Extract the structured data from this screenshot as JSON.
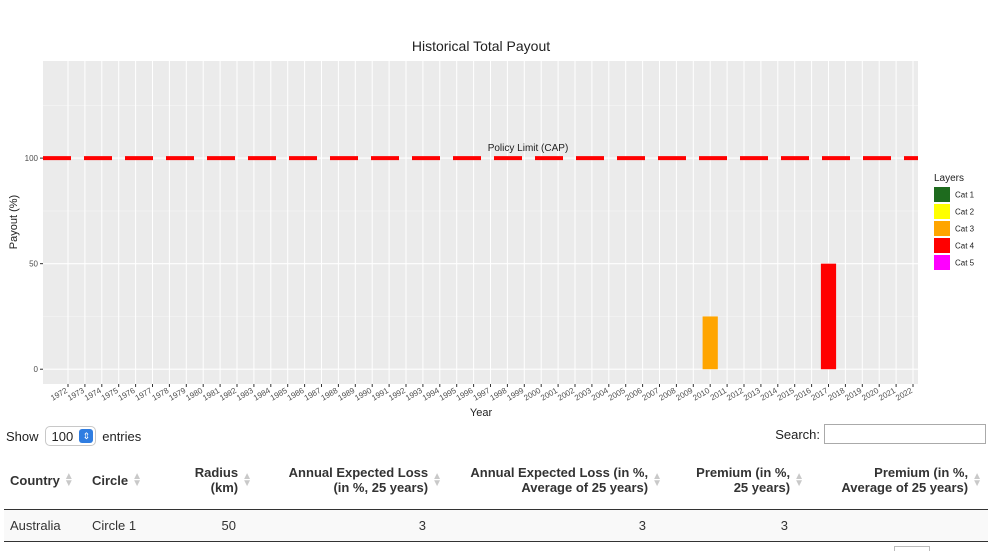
{
  "chart_data": {
    "type": "bar",
    "title": "Historical Total Payout",
    "xlabel": "Year",
    "ylabel": "Payout (%)",
    "ylim": [
      -7,
      146
    ],
    "yticks": [
      0,
      50,
      100
    ],
    "categories": [
      "1972",
      "1973",
      "1974",
      "1975",
      "1976",
      "1977",
      "1978",
      "1979",
      "1980",
      "1981",
      "1982",
      "1983",
      "1984",
      "1985",
      "1986",
      "1987",
      "1988",
      "1989",
      "1990",
      "1991",
      "1992",
      "1993",
      "1994",
      "1995",
      "1996",
      "1997",
      "1998",
      "1999",
      "2000",
      "2001",
      "2002",
      "2003",
      "2004",
      "2005",
      "2006",
      "2007",
      "2008",
      "2009",
      "2010",
      "2011",
      "2012",
      "2013",
      "2014",
      "2015",
      "2016",
      "2017",
      "2018",
      "2019",
      "2020",
      "2021",
      "2022"
    ],
    "series": [
      {
        "name": "Cat 3",
        "color": "#FFA500",
        "points": [
          {
            "x": "2010",
            "y": 25
          }
        ]
      },
      {
        "name": "Cat 4",
        "color": "#FF0000",
        "points": [
          {
            "x": "2017",
            "y": 50
          }
        ]
      }
    ],
    "reference_line": {
      "y": 100,
      "label": "Policy Limit (CAP)",
      "color": "#FF0000",
      "style": "dashed"
    },
    "legend": {
      "title": "Layers",
      "position": "right",
      "items": [
        {
          "name": "Cat 1",
          "color": "#1E6B1E"
        },
        {
          "name": "Cat 2",
          "color": "#FFFF00"
        },
        {
          "name": "Cat 3",
          "color": "#FFA500"
        },
        {
          "name": "Cat 4",
          "color": "#FF0000"
        },
        {
          "name": "Cat 5",
          "color": "#FF00FF"
        }
      ]
    },
    "grid": true,
    "panel_color": "#EBEBEB"
  },
  "controls": {
    "show_label": "Show",
    "page_length": "100",
    "entries_label": "entries",
    "search_label": "Search:",
    "search_value": ""
  },
  "table": {
    "columns": [
      "Country",
      "Circle",
      "Radius (km)",
      "Annual Expected Loss (in %, 25 years)",
      "Annual Expected Loss (in %, Average of 25 years)",
      "Premium (in %, 25 years)",
      "Premium (in %, Average of 25 years)"
    ],
    "rows": [
      [
        "Australia",
        "Circle 1",
        "50",
        "3",
        "3",
        "3",
        ""
      ]
    ]
  }
}
